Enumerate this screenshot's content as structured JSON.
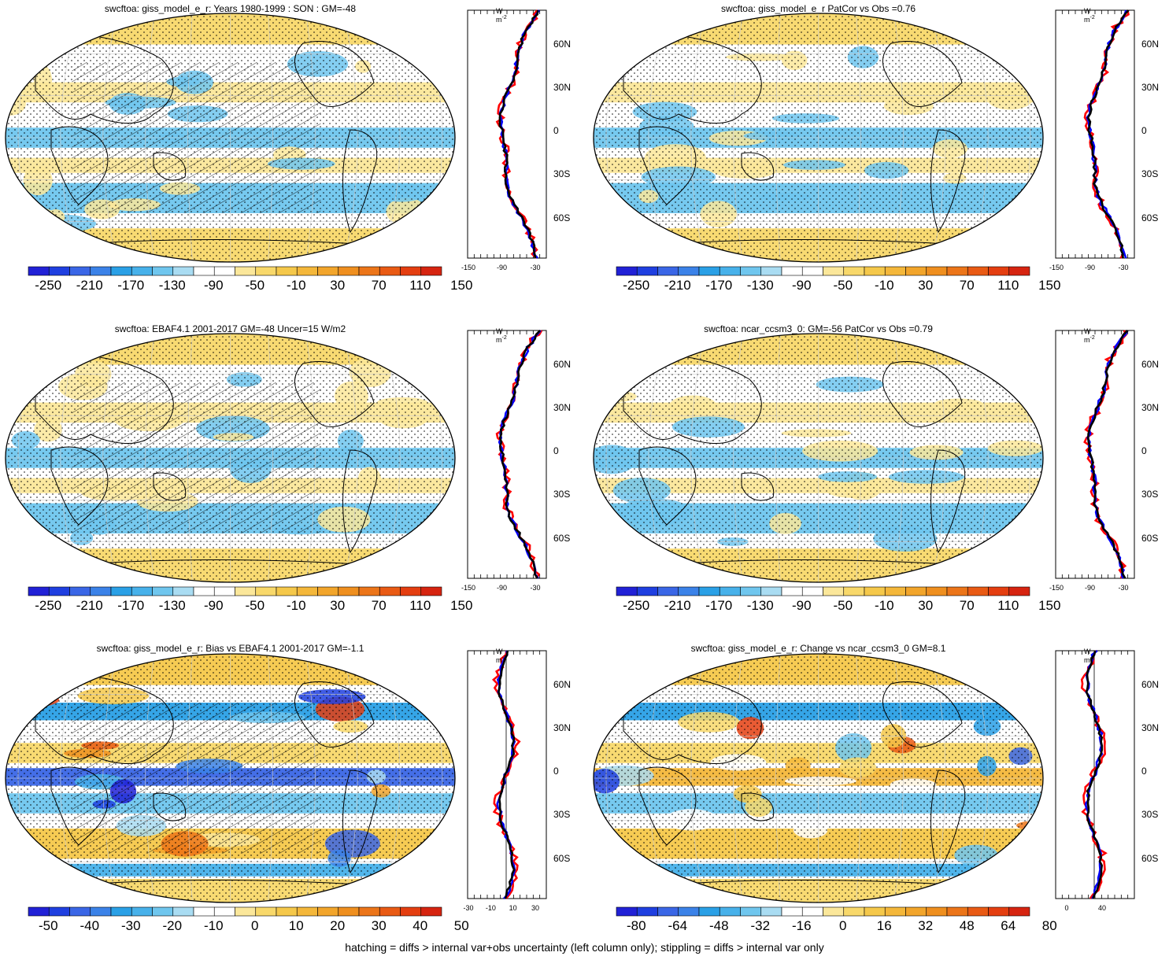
{
  "footer": "hatching = diffs > internal var+obs uncertainty (left column only); stippling = diffs > internal var only",
  "panels": [
    {
      "title": "swcftoa: giss_model_e_r: Years 1980-1999 : SON : GM=-48",
      "colorbar": [
        "-250",
        "-210",
        "-170",
        "-130",
        "-90",
        "-50",
        "-10",
        "30",
        "70",
        "110",
        "150"
      ],
      "zonal_unit": "W m",
      "zonal_unit_sup": "-2",
      "zonal_lats": [
        "60N",
        "30N",
        "0",
        "30S",
        "60S"
      ],
      "zonal_xticks": [
        "-150",
        "-90",
        "-30"
      ]
    },
    {
      "title": "swcftoa: giss_model_e_r PatCor vs Obs =0.76",
      "colorbar": [
        "-250",
        "-210",
        "-170",
        "-130",
        "-90",
        "-50",
        "-10",
        "30",
        "70",
        "110",
        "150"
      ],
      "zonal_unit": "W m",
      "zonal_unit_sup": "-2",
      "zonal_lats": [
        "60N",
        "30N",
        "0",
        "30S",
        "60S"
      ],
      "zonal_xticks": [
        "-150",
        "-90",
        "-30"
      ]
    },
    {
      "title": "swcftoa: EBAF4.1 2001-2017 GM=-48 Uncer=15 W/m2",
      "colorbar": [
        "-250",
        "-210",
        "-170",
        "-130",
        "-90",
        "-50",
        "-10",
        "30",
        "70",
        "110",
        "150"
      ],
      "zonal_unit": "W m",
      "zonal_unit_sup": "-2",
      "zonal_lats": [
        "60N",
        "30N",
        "0",
        "30S",
        "60S"
      ],
      "zonal_xticks": [
        "-150",
        "-90",
        "-30"
      ]
    },
    {
      "title": "swcftoa: ncar_ccsm3_0: GM=-56 PatCor vs Obs =0.79",
      "colorbar": [
        "-250",
        "-210",
        "-170",
        "-130",
        "-90",
        "-50",
        "-10",
        "30",
        "70",
        "110",
        "150"
      ],
      "zonal_unit": "W m",
      "zonal_unit_sup": "-2",
      "zonal_lats": [
        "60N",
        "30N",
        "0",
        "30S",
        "60S"
      ],
      "zonal_xticks": [
        "-150",
        "-90",
        "-30"
      ]
    },
    {
      "title": "swcftoa: giss_model_e_r: Bias vs EBAF4.1 2001-2017  GM=-1.1",
      "colorbar": [
        "-50",
        "-40",
        "-30",
        "-20",
        "-10",
        "0",
        "10",
        "20",
        "30",
        "40",
        "50"
      ],
      "zonal_unit": "W m",
      "zonal_unit_sup": "-2",
      "zonal_lats": [
        "60N",
        "30N",
        "0",
        "30S",
        "60S"
      ],
      "zonal_xticks": [
        "-30",
        "-10",
        "10",
        "30"
      ]
    },
    {
      "title": "swcftoa: giss_model_e_r: Change vs ncar_ccsm3_0 GM=8.1",
      "colorbar": [
        "-80",
        "-64",
        "-48",
        "-32",
        "-16",
        "0",
        "16",
        "32",
        "48",
        "64",
        "80"
      ],
      "zonal_unit": "W m",
      "zonal_unit_sup": "-2",
      "zonal_lats": [
        "60N",
        "30N",
        "0",
        "30S",
        "60S"
      ],
      "zonal_xticks": [
        "0",
        "40"
      ]
    }
  ],
  "colors": {
    "palette": [
      "#2121d6",
      "#1f3fe0",
      "#3a66e6",
      "#3b82e8",
      "#2aa0e6",
      "#47b1ea",
      "#6fc6ee",
      "#a9dcf2",
      "#ffffff",
      "#ffffff",
      "#fbe79a",
      "#f8d86a",
      "#f5c84a",
      "#f4b73a",
      "#f2a52b",
      "#ef8f1f",
      "#ec7519",
      "#e95a14",
      "#e43e10",
      "#d62410"
    ],
    "model_line": "#000000",
    "obs_line": "#ff0000",
    "other_line": "#0000ff"
  }
}
